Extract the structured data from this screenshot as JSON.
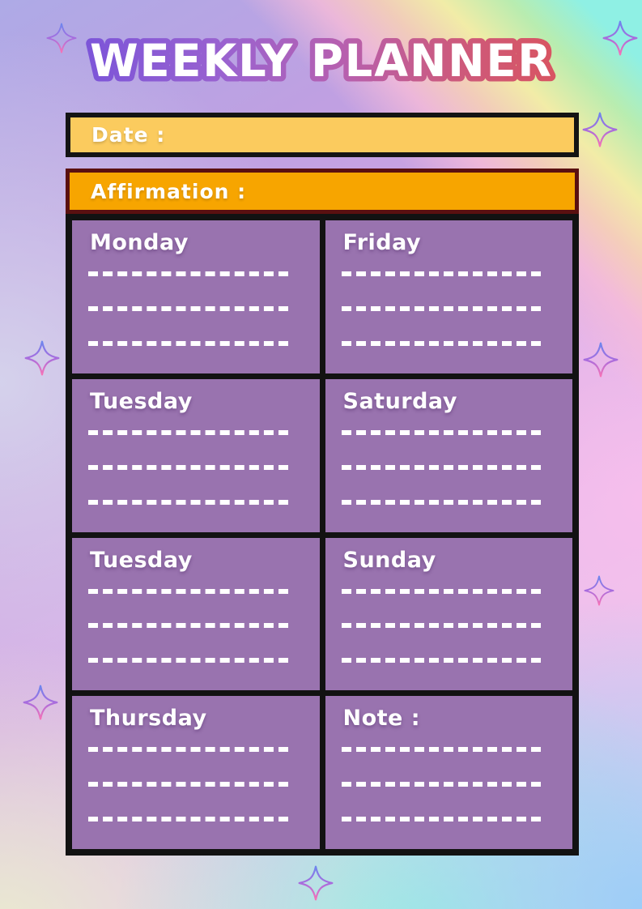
{
  "title": "WEEKLY PLANNER",
  "date_bar": {
    "label": "Date :",
    "value": ""
  },
  "affirmation_bar": {
    "label": "Affirmation :",
    "value": ""
  },
  "planner": {
    "lines_per_cell": 3,
    "cells": [
      {
        "label": "Monday"
      },
      {
        "label": "Friday"
      },
      {
        "label": "Tuesday"
      },
      {
        "label": "Saturday"
      },
      {
        "label": "Tuesday"
      },
      {
        "label": "Sunday"
      },
      {
        "label": "Thursday"
      },
      {
        "label": "Note :"
      }
    ]
  },
  "icons": {
    "sparkle": "sparkle-icon"
  },
  "colors": {
    "cell_purple": "#9973AF",
    "grid_black": "#121212",
    "date_fill": "#FBCB5E",
    "date_border": "#141414",
    "affirmation_fill": "#F7A500",
    "affirmation_border": "#5A1010",
    "title_fill": "#FFFFFF",
    "title_outline_start": "#7D55D8",
    "title_outline_mid": "#B760AE",
    "title_outline_end": "#D85562",
    "sparkle_top": "#6D86EE",
    "sparkle_mid": "#A76CDE",
    "sparkle_bottom": "#F672B6",
    "line_white": "#FFFFFF"
  }
}
